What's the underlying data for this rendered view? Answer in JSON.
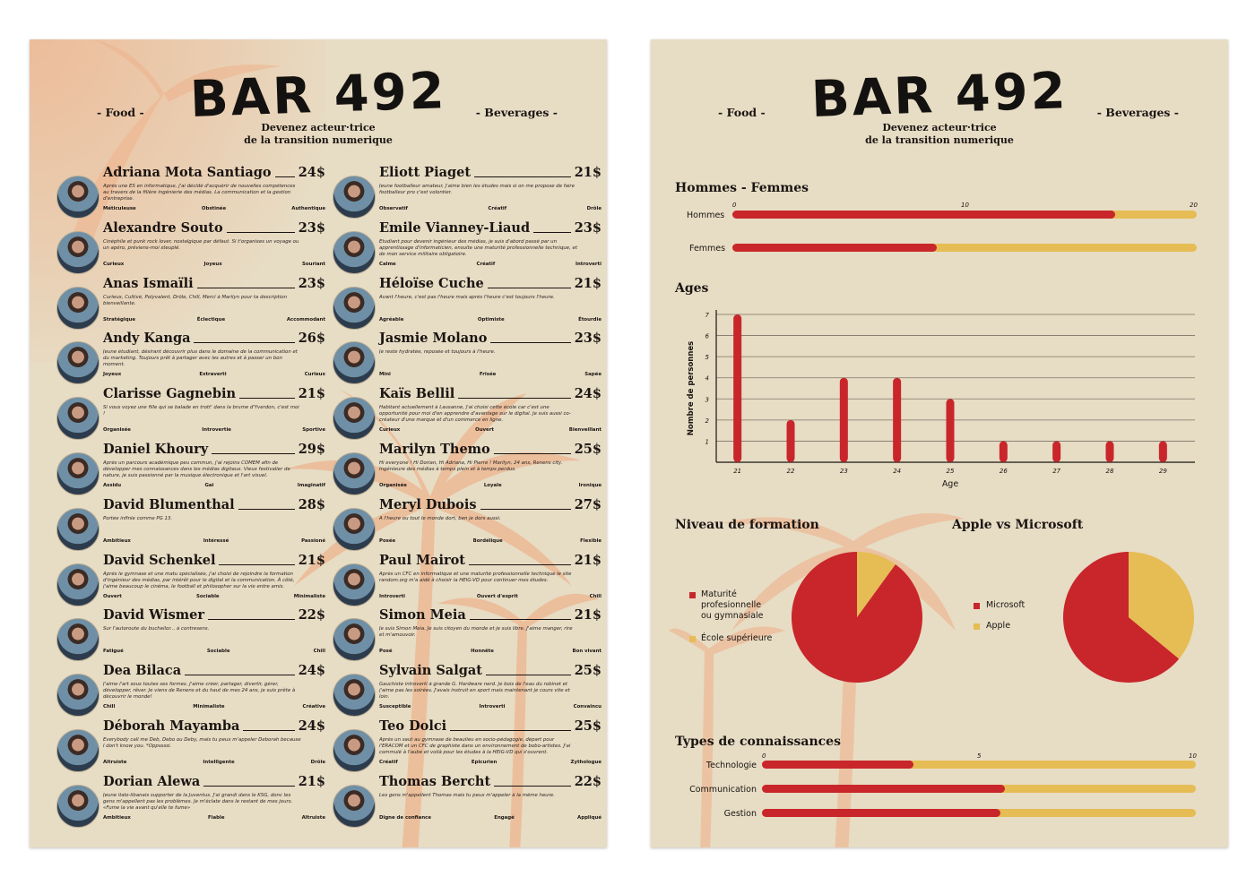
{
  "brand": {
    "title": "BAR 492",
    "subtitle_line1": "Devenez acteur·trice",
    "subtitle_line2": "de la transition numerique",
    "tag_left": "- Food -",
    "tag_right": "- Beverages -"
  },
  "colors": {
    "red": "#c8262b",
    "yellow": "#e6bc54",
    "paper": "#e7dcc4",
    "ink": "#1a1512",
    "palm": "#eeb28c"
  },
  "menu": {
    "left": [
      {
        "name": "Adriana Mota Santiago",
        "price": "24$",
        "desc": "Après une ES en informatique, j'ai décidé d'acquérir de nouvelles compétences au travers de la filière ingénierie des médias. La communication et la gestion d'entreprise.",
        "traits": [
          "Méticuleuse",
          "Obstinée",
          "Authentique"
        ]
      },
      {
        "name": "Alexandre Souto",
        "price": "23$",
        "desc": "Cinéphile et punk rock lover, nostalgique par défaut. Si t'organises un voyage ou un apéro, préviens-moi steuplé.",
        "traits": [
          "Curieux",
          "Joyeux",
          "Souriant"
        ]
      },
      {
        "name": "Anas Ismaïli",
        "price": "23$",
        "desc": "Curieux, Cultivé, Polyvalent, Drôle, Chill, Merci à Marilyn pour ta description bienveillante.",
        "traits": [
          "Stratégique",
          "Éclectique",
          "Accommodant"
        ]
      },
      {
        "name": "Andy Kanga",
        "price": "26$",
        "desc": "Jeune étudiant, désirant découvrir plus dans le domaine de la communication et du marketing. Toujours prêt à partager avec les autres et à passer un bon moment.",
        "traits": [
          "Joyeux",
          "Extraverti",
          "Curieux"
        ]
      },
      {
        "name": "Clarisse Gagnebin",
        "price": "21$",
        "desc": "Si vous voyez une fille qui se balade en trott' dans la brume d'Yverdon, c'est moi !",
        "traits": [
          "Organisée",
          "Introvertie",
          "Sportive"
        ]
      },
      {
        "name": "Daniel Khoury",
        "price": "29$",
        "desc": "Après un parcours académique peu commun, j'ai rejoins COMEM afin de développer mes connaissances dans les médias digitaux. Vieux festivalier de nature, je suis passionné par la musique électronique et l'art visuel.",
        "traits": [
          "Assidu",
          "Gai",
          "Imaginatif"
        ]
      },
      {
        "name": "David Blumenthal",
        "price": "28$",
        "desc": "Portée infinie comme PG 13.",
        "traits": [
          "Ambitieux",
          "Intéressé",
          "Passioné"
        ]
      },
      {
        "name": "David Schenkel",
        "price": "21$",
        "desc": "Après le gymnase et une matu spécialisée, j'ai choisi de rejoindre la formation d'ingénieur des médias, par intérêt pour le digital et la communication. À côté, j'aime beaucoup le cinéma, le football et philosopher sur la vie entre amis.",
        "traits": [
          "Ouvert",
          "Sociable",
          "Minimaliste"
        ]
      },
      {
        "name": "David Wismer",
        "price": "22$",
        "desc": "Sur l'autoroute du bucheilor... à contresens.",
        "traits": [
          "Fatigué",
          "Sociable",
          "Chill"
        ]
      },
      {
        "name": "Dea Bilaca",
        "price": "24$",
        "desc": "J'aime l'art sous toutes ses formes. J'aime créer, partager, divertir, gérer, développer, rêver. Je viens de Renens et du haut de mes 24 ans, je suis prête à découvrir le monde!",
        "traits": [
          "Chill",
          "Minimaliste",
          "Créative"
        ]
      },
      {
        "name": "Déborah Mayamba",
        "price": "24$",
        "desc": "Everybody call me Deb, Debo ou Deby, mais tu peux m'appeler Deborah because I don't know you. *Oppssssi.",
        "traits": [
          "Altruiste",
          "Intelligente",
          "Drôle"
        ]
      },
      {
        "name": "Dorian Alewa",
        "price": "21$",
        "desc": "Jeune italo-libanais supporter de la Juventus. J'ai grandi dans le KSG, donc les gens m'appellent pas les problèmes. Je m'éclate dans le restant de mes jours. «Fume la vie avant qu'elle te fume»",
        "traits": [
          "Ambitieux",
          "Fiable",
          "Altruiste"
        ]
      }
    ],
    "right": [
      {
        "name": "Eliott Piaget",
        "price": "21$",
        "desc": "Jeune footballeur amateur, j'aime bien les études mais si on me propose de faire footballeur pro c'est volontier.",
        "traits": [
          "Observatif",
          "Créatif",
          "Drôle"
        ]
      },
      {
        "name": "Emile Vianney-Liaud",
        "price": "23$",
        "desc": "Etudiant pour devenir ingénieur des médias, je suis d'abord passé par un apprentissage d'informaticien, ensuite une maturité professionnelle technique, et de mon service militaire obligatoire.",
        "traits": [
          "Calme",
          "Créatif",
          "Introverti"
        ]
      },
      {
        "name": "Héloïse Cuche",
        "price": "21$",
        "desc": "Avant l'heure, c'est pas l'heure mais après l'heure c'est toujours l'heure.",
        "traits": [
          "Agréable",
          "Optimiste",
          "Étourdie"
        ]
      },
      {
        "name": "Jasmie Molano",
        "price": "23$",
        "desc": "Je reste hydratée, reposée et toujours à l'heure.",
        "traits": [
          "Mini",
          "Frisée",
          "Sapée"
        ]
      },
      {
        "name": "Kaïs Bellil",
        "price": "24$",
        "desc": "Habitant actuellement à Lausanne, j'ai choisi cette école car c'est une opportunité pour moi d'en apprendre d'avantage sur le digital. Je suis aussi co-créateur d'une marque et d'un commerce en ligne.",
        "traits": [
          "Curieux",
          "Ouvert",
          "Bienveillant"
        ]
      },
      {
        "name": "Marilyn Themo",
        "price": "25$",
        "desc": "Hi everyone ! Hi Dorian, Hi Adriana, Hi Pierre ! Marilyn, 24 ans, Renens city. Ingénieure des médias à temps plein et à temps perdus.",
        "traits": [
          "Organisée",
          "Loyale",
          "Ironique"
        ]
      },
      {
        "name": "Meryl Dubois",
        "price": "27$",
        "desc": "À l'heure ou tout le monde dort, ben je dors aussi.",
        "traits": [
          "Posée",
          "Bordélique",
          "Flexible"
        ]
      },
      {
        "name": "Paul Mairot",
        "price": "21$",
        "desc": "Après un CFC en informatique et une maturité professionnelle technique le site random.org m'a aidé à choisir la HEIG-VD pour continuer mes études.",
        "traits": [
          "Introverti",
          "Ouvert d'esprit",
          "Chill"
        ]
      },
      {
        "name": "Simon Meia",
        "price": "21$",
        "desc": "Je suis Simon Meia. Je suis citoyen du monde et je suis libre. J'aime manger, rire et m'amouvoir.",
        "traits": [
          "Posé",
          "Honnête",
          "Bon vivant"
        ]
      },
      {
        "name": "Sylvain Salgat",
        "price": "25$",
        "desc": "Gauchiste introverti à grande G. Hardware nerd. Je bois de l'eau du robinet et j'aime pas les soirées. J'avais instruit en sport mais maintenant je cours vite et loin.",
        "traits": [
          "Susceptible",
          "Introverti",
          "Convaincu"
        ]
      },
      {
        "name": "Teo Dolci",
        "price": "25$",
        "desc": "Après un saut au gymnase de beaulieu en socio-pédagogie, départ pour l'ERACOM et un CFC de graphiste dans un environnement de bobo-artistes. J'ai commulé à l'aube et voilà pour les études à la HEIG-VD qui s'ouvrent.",
        "traits": [
          "Créatif",
          "Epicurien",
          "Zythologue"
        ]
      },
      {
        "name": "Thomas Bercht",
        "price": "22$",
        "desc": "Les gens m'appellent Thomas mais tu peux m'appeler à la même heure.",
        "traits": [
          "Digne de confiance",
          "Engagé",
          "Appliqué"
        ]
      }
    ]
  },
  "stats": {
    "gender": {
      "title": "Hommes - Femmes",
      "ticks": [
        "0",
        "10",
        "20"
      ],
      "max": 20,
      "rows": [
        {
          "label": "Hommes",
          "value": 16.5
        },
        {
          "label": "Femmes",
          "value": 8.8
        }
      ]
    },
    "ages": {
      "title": "Ages",
      "xlabel": "Age",
      "ylabel": "Nombre de personnes",
      "yticks": [
        "1",
        "2",
        "3",
        "4",
        "5",
        "6",
        "7"
      ],
      "chart_data": {
        "type": "bar",
        "categories": [
          "21",
          "22",
          "23",
          "24",
          "25",
          "26",
          "27",
          "28",
          "29"
        ],
        "values": [
          7,
          2,
          4,
          4,
          3,
          1,
          1,
          1,
          1
        ],
        "xlabel": "Age",
        "ylabel": "Nombre de personnes",
        "ylim": [
          0,
          7
        ]
      }
    },
    "formation": {
      "title": "Niveau de formation",
      "legend": [
        {
          "label": "Maturité profesionnelle ou gymnasiale",
          "line1": "Maturité",
          "line2": "profesionnelle",
          "line3": "ou gymnasiale"
        },
        {
          "label": "École supérieure"
        }
      ],
      "chart_data": {
        "type": "pie",
        "labels": [
          "Maturité profesionnelle ou gymnasiale",
          "École supérieure"
        ],
        "values": [
          90,
          10
        ]
      }
    },
    "os": {
      "title": "Apple vs Microsoft",
      "legend": [
        {
          "label": "Microsoft"
        },
        {
          "label": "Apple"
        }
      ],
      "chart_data": {
        "type": "pie",
        "labels": [
          "Microsoft",
          "Apple"
        ],
        "values": [
          64,
          36
        ]
      }
    },
    "knowledge": {
      "title": "Types de connaissances",
      "ticks": [
        "0",
        "5",
        "10"
      ],
      "max": 10,
      "rows": [
        {
          "label": "Technologie",
          "value": 3.5
        },
        {
          "label": "Communication",
          "value": 5.6
        },
        {
          "label": "Gestion",
          "value": 5.5
        }
      ]
    }
  }
}
